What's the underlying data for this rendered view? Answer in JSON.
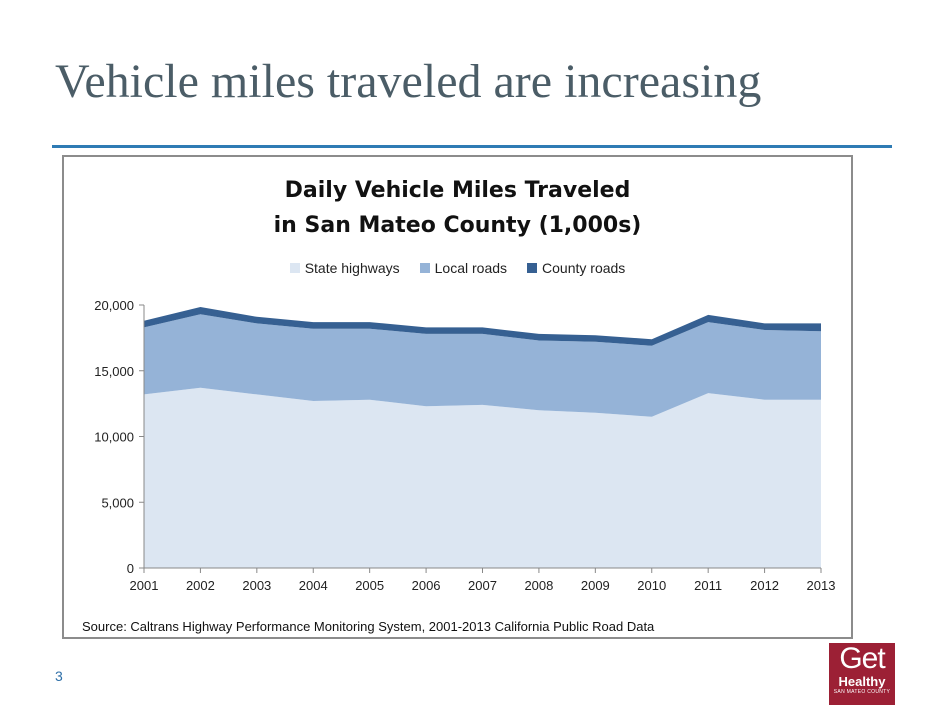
{
  "slide": {
    "title": "Vehicle miles traveled are increasing",
    "page_number": "3",
    "logo": {
      "word1": "Get",
      "word2": "Healthy",
      "word3": "SAN MATEO COUNTY"
    }
  },
  "colors": {
    "title_text": "#4b5d67",
    "title_rule": "#2e7bb4",
    "state_highways": "#dce6f2",
    "local_roads": "#95b3d7",
    "county_roads": "#366092",
    "logo_bg": "#9c2035"
  },
  "chart_data": {
    "type": "area",
    "stacked": true,
    "title_lines": [
      "Daily Vehicle Miles Traveled",
      "in San Mateo County (1,000s)"
    ],
    "x": [
      "2001",
      "2002",
      "2003",
      "2004",
      "2005",
      "2006",
      "2007",
      "2008",
      "2009",
      "2010",
      "2011",
      "2012",
      "2013"
    ],
    "series": [
      {
        "name": "State highways",
        "color": "#dce6f2",
        "values": [
          13200,
          13700,
          13200,
          12700,
          12800,
          12300,
          12400,
          12000,
          11800,
          11500,
          13300,
          12800,
          12800
        ]
      },
      {
        "name": "Local roads",
        "color": "#95b3d7",
        "values": [
          5100,
          5600,
          5400,
          5500,
          5400,
          5500,
          5400,
          5300,
          5400,
          5400,
          5400,
          5300,
          5200
        ]
      },
      {
        "name": "County roads",
        "color": "#366092",
        "values": [
          500,
          550,
          500,
          500,
          500,
          500,
          500,
          500,
          500,
          500,
          550,
          500,
          600
        ]
      }
    ],
    "ylim": [
      0,
      20000
    ],
    "yticks": [
      "0",
      "5,000",
      "10,000",
      "15,000",
      "20,000"
    ],
    "legend_position": "top",
    "grid": false,
    "source": "Source: Caltrans Highway Performance Monitoring System, 2001-2013 California Public Road Data"
  }
}
